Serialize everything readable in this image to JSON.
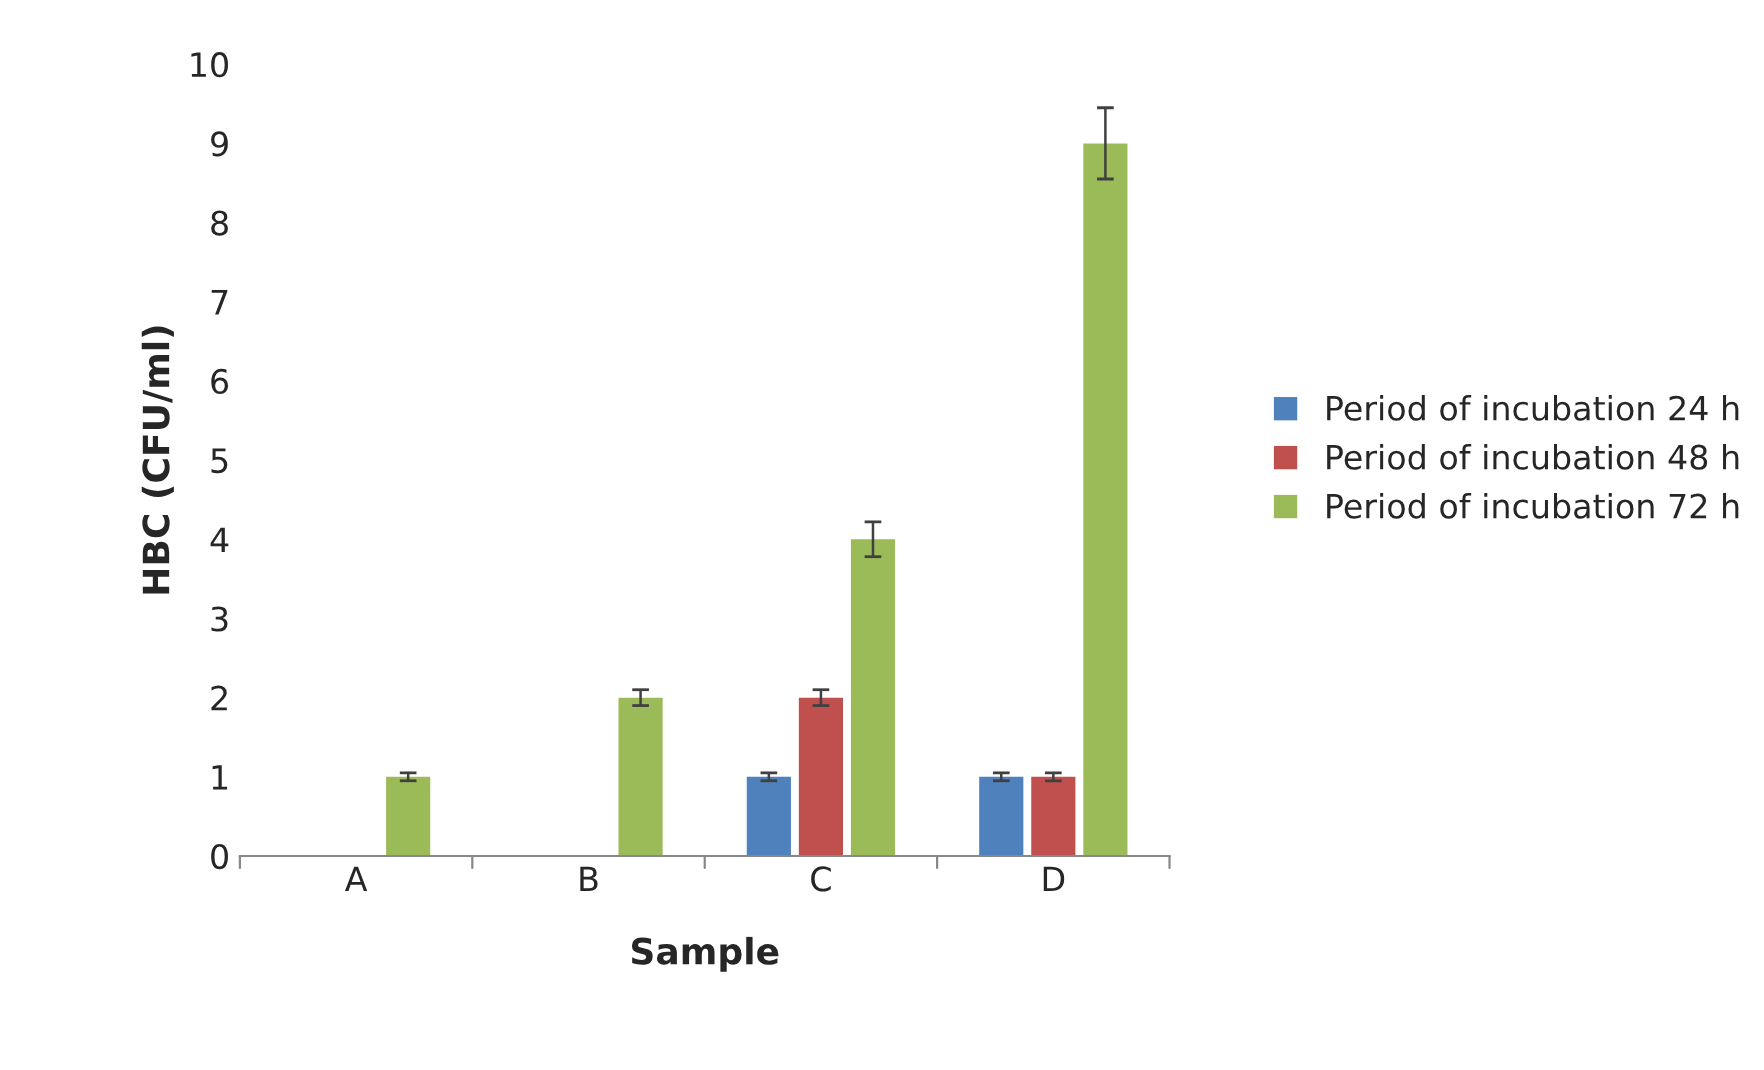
{
  "chart_data": {
    "type": "bar",
    "xlabel": "Sample",
    "ylabel": "HBC (CFU/ml)",
    "categories": [
      "A",
      "B",
      "C",
      "D"
    ],
    "series": [
      {
        "name": "Period of incubation 24 h",
        "color": "#4f81bd",
        "values": [
          null,
          null,
          1,
          1
        ],
        "errors": [
          null,
          null,
          0.05,
          0.05
        ]
      },
      {
        "name": "Period of incubation 48 h",
        "color": "#c0504d",
        "values": [
          null,
          null,
          2,
          1
        ],
        "errors": [
          null,
          null,
          0.1,
          0.05
        ]
      },
      {
        "name": "Period of incubation 72 h",
        "color": "#9bbb59",
        "values": [
          1,
          2,
          4,
          9
        ],
        "errors": [
          0.05,
          0.1,
          0.22,
          0.45
        ]
      }
    ],
    "ylim": [
      0,
      10
    ],
    "yticks": [
      0,
      1,
      2,
      3,
      4,
      5,
      6,
      7,
      8,
      9,
      10
    ],
    "grid": false,
    "legend": "right"
  }
}
